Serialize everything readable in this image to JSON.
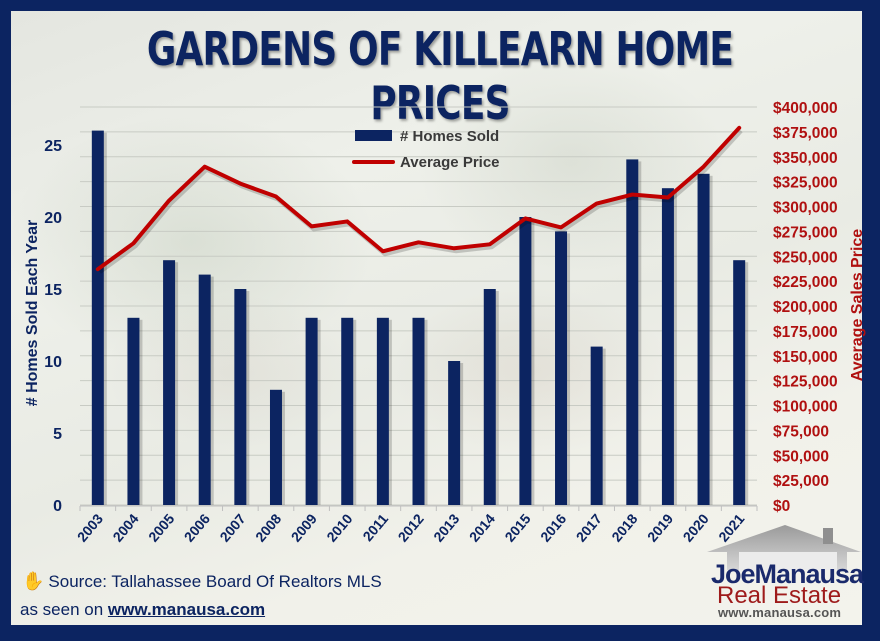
{
  "title": "GARDENS OF KILLEARN HOME PRICES",
  "legend": {
    "bars": "# Homes Sold",
    "line": "Average Price"
  },
  "left_axis": {
    "label": "# Homes Sold Each Year",
    "ticks": [
      "0",
      "5",
      "10",
      "15",
      "20",
      "25"
    ]
  },
  "right_axis": {
    "label": "Average Sales Price",
    "ticks": [
      "$0",
      "$25,000",
      "$50,000",
      "$75,000",
      "$100,000",
      "$125,000",
      "$150,000",
      "$175,000",
      "$200,000",
      "$225,000",
      "$250,000",
      "$275,000",
      "$300,000",
      "$325,000",
      "$350,000",
      "$375,000",
      "$400,000"
    ]
  },
  "source": "Source: Tallahassee Board Of Realtors MLS",
  "seen_on_prefix": "as seen on",
  "seen_on_link": "www.manausa.com",
  "logo": {
    "line1": "JoeManausa",
    "line2": "Real Estate",
    "line3": "www.manausa.com"
  },
  "colors": {
    "bars": "#0c2461",
    "line": "#c00000",
    "frame": "#0c2461",
    "right_axis": "#b01010"
  },
  "chart_data": {
    "type": "bar",
    "title": "GARDENS OF KILLEARN HOME PRICES",
    "categories": [
      "2003",
      "2004",
      "2005",
      "2006",
      "2007",
      "2008",
      "2009",
      "2010",
      "2011",
      "2012",
      "2013",
      "2014",
      "2015",
      "2016",
      "2017",
      "2018",
      "2019",
      "2020",
      "2021"
    ],
    "series": [
      {
        "name": "# Homes Sold",
        "type": "bar",
        "axis": "left",
        "values": [
          26,
          13,
          17,
          16,
          15,
          8,
          13,
          13,
          13,
          13,
          10,
          15,
          20,
          19,
          11,
          24,
          22,
          23,
          17
        ]
      },
      {
        "name": "Average Price",
        "type": "line",
        "axis": "right",
        "values": [
          237000,
          263000,
          306000,
          340000,
          323000,
          310000,
          280000,
          285000,
          255000,
          264000,
          258000,
          262000,
          288000,
          279000,
          303000,
          312000,
          309000,
          340000,
          379000
        ]
      }
    ],
    "xlabel": "",
    "ylabel": "# Homes Sold Each Year",
    "ylabel_right": "Average Sales Price",
    "ylim": [
      0,
      28
    ],
    "ylim_right": [
      0,
      400000
    ],
    "grid": true,
    "legend_position": "top-center-inside"
  }
}
